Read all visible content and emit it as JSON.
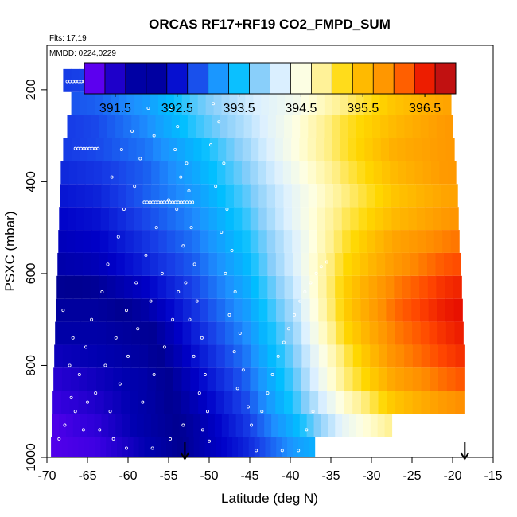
{
  "chart_data": {
    "type": "heatmap",
    "title": "ORCAS RF17+RF19 CO2_FMPD_SUM",
    "flights_note": "Flts: 17,19",
    "date_note": "MMDD: 0224,0229",
    "xlabel": "Latitude (deg N)",
    "ylabel": "PSXC (mbar)",
    "xlim": [
      -70,
      -15
    ],
    "ylim": [
      1000,
      100
    ],
    "x_ticks": [
      -70,
      -65,
      -60,
      -55,
      -50,
      -45,
      -40,
      -35,
      -30,
      -25,
      -20,
      -15
    ],
    "y_ticks": [
      200,
      400,
      600,
      800,
      1000
    ],
    "grid": false,
    "legend_position": "top, inside plot",
    "colorbar": {
      "min": 391.0,
      "max": 397.0,
      "tick_values": [
        391.5,
        392.5,
        393.5,
        394.5,
        395.5,
        396.5
      ],
      "tick_labels": [
        "391.5",
        "392.5",
        "393.5",
        "394.5",
        "395.5",
        "396.5"
      ],
      "colors": [
        "#8000ff",
        "#3300dd",
        "#0000b0",
        "#000090",
        "#0000c8",
        "#1840e8",
        "#1e90ff",
        "#00bfff",
        "#87cefa",
        "#dcf0ff",
        "#ffffe0",
        "#fff08c",
        "#ffd700",
        "#ffb000",
        "#ff8c00",
        "#ff4500",
        "#e00000",
        "#a52020"
      ]
    },
    "value_grid": {
      "pressure_rows": [
        {
          "p": 180,
          "lat_min": -68.0,
          "lat_max": -20.5,
          "values": [
            392.7,
            392.8,
            393.2,
            393.8,
            394.2,
            394.3,
            394.6,
            395.2,
            395.6,
            395.7
          ]
        },
        {
          "p": 230,
          "lat_min": -67.0,
          "lat_max": -20.2,
          "values": [
            392.8,
            392.9,
            393.2,
            393.7,
            394.1,
            394.4,
            394.9,
            395.4,
            395.7,
            395.8
          ]
        },
        {
          "p": 280,
          "lat_min": -67.5,
          "lat_max": -20.0,
          "values": [
            392.7,
            392.8,
            393.1,
            393.6,
            394.0,
            394.5,
            395.1,
            395.5,
            395.8,
            395.9
          ]
        },
        {
          "p": 330,
          "lat_min": -68.0,
          "lat_max": -19.8,
          "values": [
            392.7,
            392.8,
            393.0,
            393.4,
            393.9,
            394.5,
            395.1,
            395.6,
            395.8,
            395.9
          ]
        },
        {
          "p": 380,
          "lat_min": -68.3,
          "lat_max": -19.6,
          "values": [
            392.6,
            392.7,
            392.9,
            393.3,
            393.8,
            394.4,
            395.0,
            395.5,
            395.8,
            395.9
          ]
        },
        {
          "p": 430,
          "lat_min": -68.4,
          "lat_max": -19.4,
          "values": [
            392.5,
            392.6,
            392.9,
            393.2,
            393.7,
            394.3,
            394.9,
            395.4,
            395.7,
            395.8
          ]
        },
        {
          "p": 480,
          "lat_min": -68.5,
          "lat_max": -19.3,
          "values": [
            392.4,
            392.5,
            392.8,
            393.1,
            393.6,
            394.3,
            395.0,
            395.5,
            395.8,
            396.0
          ]
        },
        {
          "p": 530,
          "lat_min": -68.6,
          "lat_max": -19.2,
          "values": [
            392.3,
            392.4,
            392.7,
            393.0,
            393.5,
            394.2,
            395.1,
            395.7,
            396.0,
            396.2
          ]
        },
        {
          "p": 580,
          "lat_min": -68.7,
          "lat_max": -19.0,
          "values": [
            392.2,
            392.3,
            392.6,
            392.9,
            393.4,
            394.2,
            395.2,
            395.8,
            396.2,
            396.4
          ]
        },
        {
          "p": 630,
          "lat_min": -68.8,
          "lat_max": -18.9,
          "values": [
            392.0,
            392.1,
            392.4,
            392.8,
            393.3,
            394.1,
            395.3,
            396.0,
            396.4,
            396.6
          ]
        },
        {
          "p": 680,
          "lat_min": -68.9,
          "lat_max": -18.8,
          "values": [
            391.9,
            391.9,
            392.2,
            392.7,
            393.2,
            394.0,
            395.3,
            396.1,
            396.5,
            396.7
          ]
        },
        {
          "p": 730,
          "lat_min": -69.0,
          "lat_max": -18.7,
          "values": [
            391.8,
            391.8,
            392.0,
            392.6,
            393.1,
            393.9,
            395.2,
            396.0,
            396.4,
            396.7
          ]
        },
        {
          "p": 780,
          "lat_min": -69.1,
          "lat_max": -18.6,
          "values": [
            391.6,
            391.7,
            391.9,
            392.5,
            393.0,
            393.8,
            395.0,
            395.9,
            396.3,
            396.6
          ]
        },
        {
          "p": 830,
          "lat_min": -69.2,
          "lat_max": -18.6,
          "values": [
            391.4,
            391.6,
            391.8,
            392.4,
            392.9,
            393.7,
            394.9,
            395.7,
            396.1,
            396.4
          ]
        },
        {
          "p": 880,
          "lat_min": -69.3,
          "lat_max": -18.6,
          "values": [
            391.3,
            391.5,
            391.8,
            392.3,
            392.8,
            393.6,
            394.6,
            395.4,
            395.8,
            396.1
          ]
        },
        {
          "p": 930,
          "lat_min": -69.4,
          "lat_max": -27.5,
          "values": [
            391.2,
            391.4,
            391.8,
            392.2,
            392.7,
            393.4,
            394.3,
            394.9,
            395.0,
            395.0
          ]
        },
        {
          "p": 980,
          "lat_min": -69.5,
          "lat_max": -37.0,
          "values": [
            391.2,
            391.3,
            391.7,
            392.2,
            392.6,
            393.2,
            393.6,
            393.8,
            393.8,
            393.8
          ]
        }
      ]
    },
    "aircraft_tracks": [
      {
        "lat_from": -67.5,
        "lat_to": -56.5,
        "p": 182
      },
      {
        "lat_from": -51.0,
        "lat_to": -45.5,
        "p": 190
      },
      {
        "lat_from": -35.5,
        "lat_to": -21.5,
        "p": 185
      },
      {
        "lat_from": -66.5,
        "lat_to": -63.5,
        "p": 328
      },
      {
        "lat_from": -58.0,
        "lat_to": -52.0,
        "p": 445
      }
    ],
    "scatter_points": [
      [
        -55.5,
        200
      ],
      [
        -54.8,
        240
      ],
      [
        -53.9,
        280
      ],
      [
        -54.2,
        330
      ],
      [
        -52.8,
        360
      ],
      [
        -53.5,
        390
      ],
      [
        -52.5,
        420
      ],
      [
        -54.0,
        460
      ],
      [
        -52.2,
        500
      ],
      [
        -53.2,
        540
      ],
      [
        -51.8,
        580
      ],
      [
        -52.9,
        620
      ],
      [
        -51.5,
        660
      ],
      [
        -52.4,
        700
      ],
      [
        -50.9,
        740
      ],
      [
        -51.9,
        780
      ],
      [
        -50.5,
        820
      ],
      [
        -51.2,
        860
      ],
      [
        -50.2,
        900
      ],
      [
        -50.8,
        940
      ],
      [
        -50.0,
        965
      ],
      [
        -49.5,
        230
      ],
      [
        -48.8,
        270
      ],
      [
        -49.8,
        320
      ],
      [
        -48.2,
        360
      ],
      [
        -49.2,
        410
      ],
      [
        -47.8,
        460
      ],
      [
        -48.5,
        510
      ],
      [
        -47.2,
        550
      ],
      [
        -48.0,
        600
      ],
      [
        -46.8,
        640
      ],
      [
        -47.5,
        690
      ],
      [
        -46.2,
        730
      ],
      [
        -46.9,
        770
      ],
      [
        -45.8,
        810
      ],
      [
        -46.5,
        850
      ],
      [
        -45.2,
        890
      ],
      [
        -44.8,
        930
      ],
      [
        -44.2,
        985
      ],
      [
        -43.5,
        900
      ],
      [
        -42.8,
        860
      ],
      [
        -42.2,
        820
      ],
      [
        -41.5,
        780
      ],
      [
        -40.8,
        750
      ],
      [
        -40.2,
        720
      ],
      [
        -39.5,
        690
      ],
      [
        -38.8,
        660
      ],
      [
        -38.2,
        640
      ],
      [
        -37.5,
        620
      ],
      [
        -36.8,
        600
      ],
      [
        -36.2,
        585
      ],
      [
        -35.5,
        575
      ],
      [
        -39.0,
        985
      ],
      [
        -41.0,
        985
      ],
      [
        -38.0,
        940
      ],
      [
        -37.2,
        900
      ],
      [
        -57.5,
        240
      ],
      [
        -56.8,
        300
      ],
      [
        -58.5,
        350
      ],
      [
        -59.2,
        410
      ],
      [
        -60.5,
        460
      ],
      [
        -61.2,
        520
      ],
      [
        -62.5,
        580
      ],
      [
        -63.2,
        640
      ],
      [
        -64.5,
        700
      ],
      [
        -65.2,
        760
      ],
      [
        -66.0,
        820
      ],
      [
        -67.0,
        870
      ],
      [
        -67.8,
        930
      ],
      [
        -68.5,
        960
      ],
      [
        -66.5,
        900
      ],
      [
        -65.5,
        940
      ],
      [
        -64.0,
        860
      ],
      [
        -62.8,
        800
      ],
      [
        -61.5,
        740
      ],
      [
        -60.2,
        680
      ],
      [
        -59.0,
        620
      ],
      [
        -57.8,
        560
      ],
      [
        -56.5,
        500
      ],
      [
        -55.0,
        440
      ],
      [
        -62.0,
        390
      ],
      [
        -60.8,
        330
      ],
      [
        -59.5,
        290
      ],
      [
        -61.8,
        960
      ],
      [
        -60.2,
        980
      ],
      [
        -57.0,
        980
      ],
      [
        -54.8,
        960
      ],
      [
        -53.2,
        930
      ],
      [
        -58.2,
        880
      ],
      [
        -56.8,
        820
      ],
      [
        -55.5,
        760
      ],
      [
        -54.5,
        700
      ],
      [
        -53.8,
        640
      ],
      [
        -55.8,
        600
      ],
      [
        -57.2,
        660
      ],
      [
        -58.8,
        720
      ],
      [
        -60.0,
        780
      ],
      [
        -61.0,
        840
      ],
      [
        -62.2,
        900
      ],
      [
        -63.5,
        940
      ],
      [
        -65.0,
        880
      ],
      [
        -67.2,
        800
      ],
      [
        -66.8,
        740
      ],
      [
        -68.0,
        680
      ]
    ],
    "arrow_markers_lat": [
      -53.0,
      -18.5
    ]
  }
}
